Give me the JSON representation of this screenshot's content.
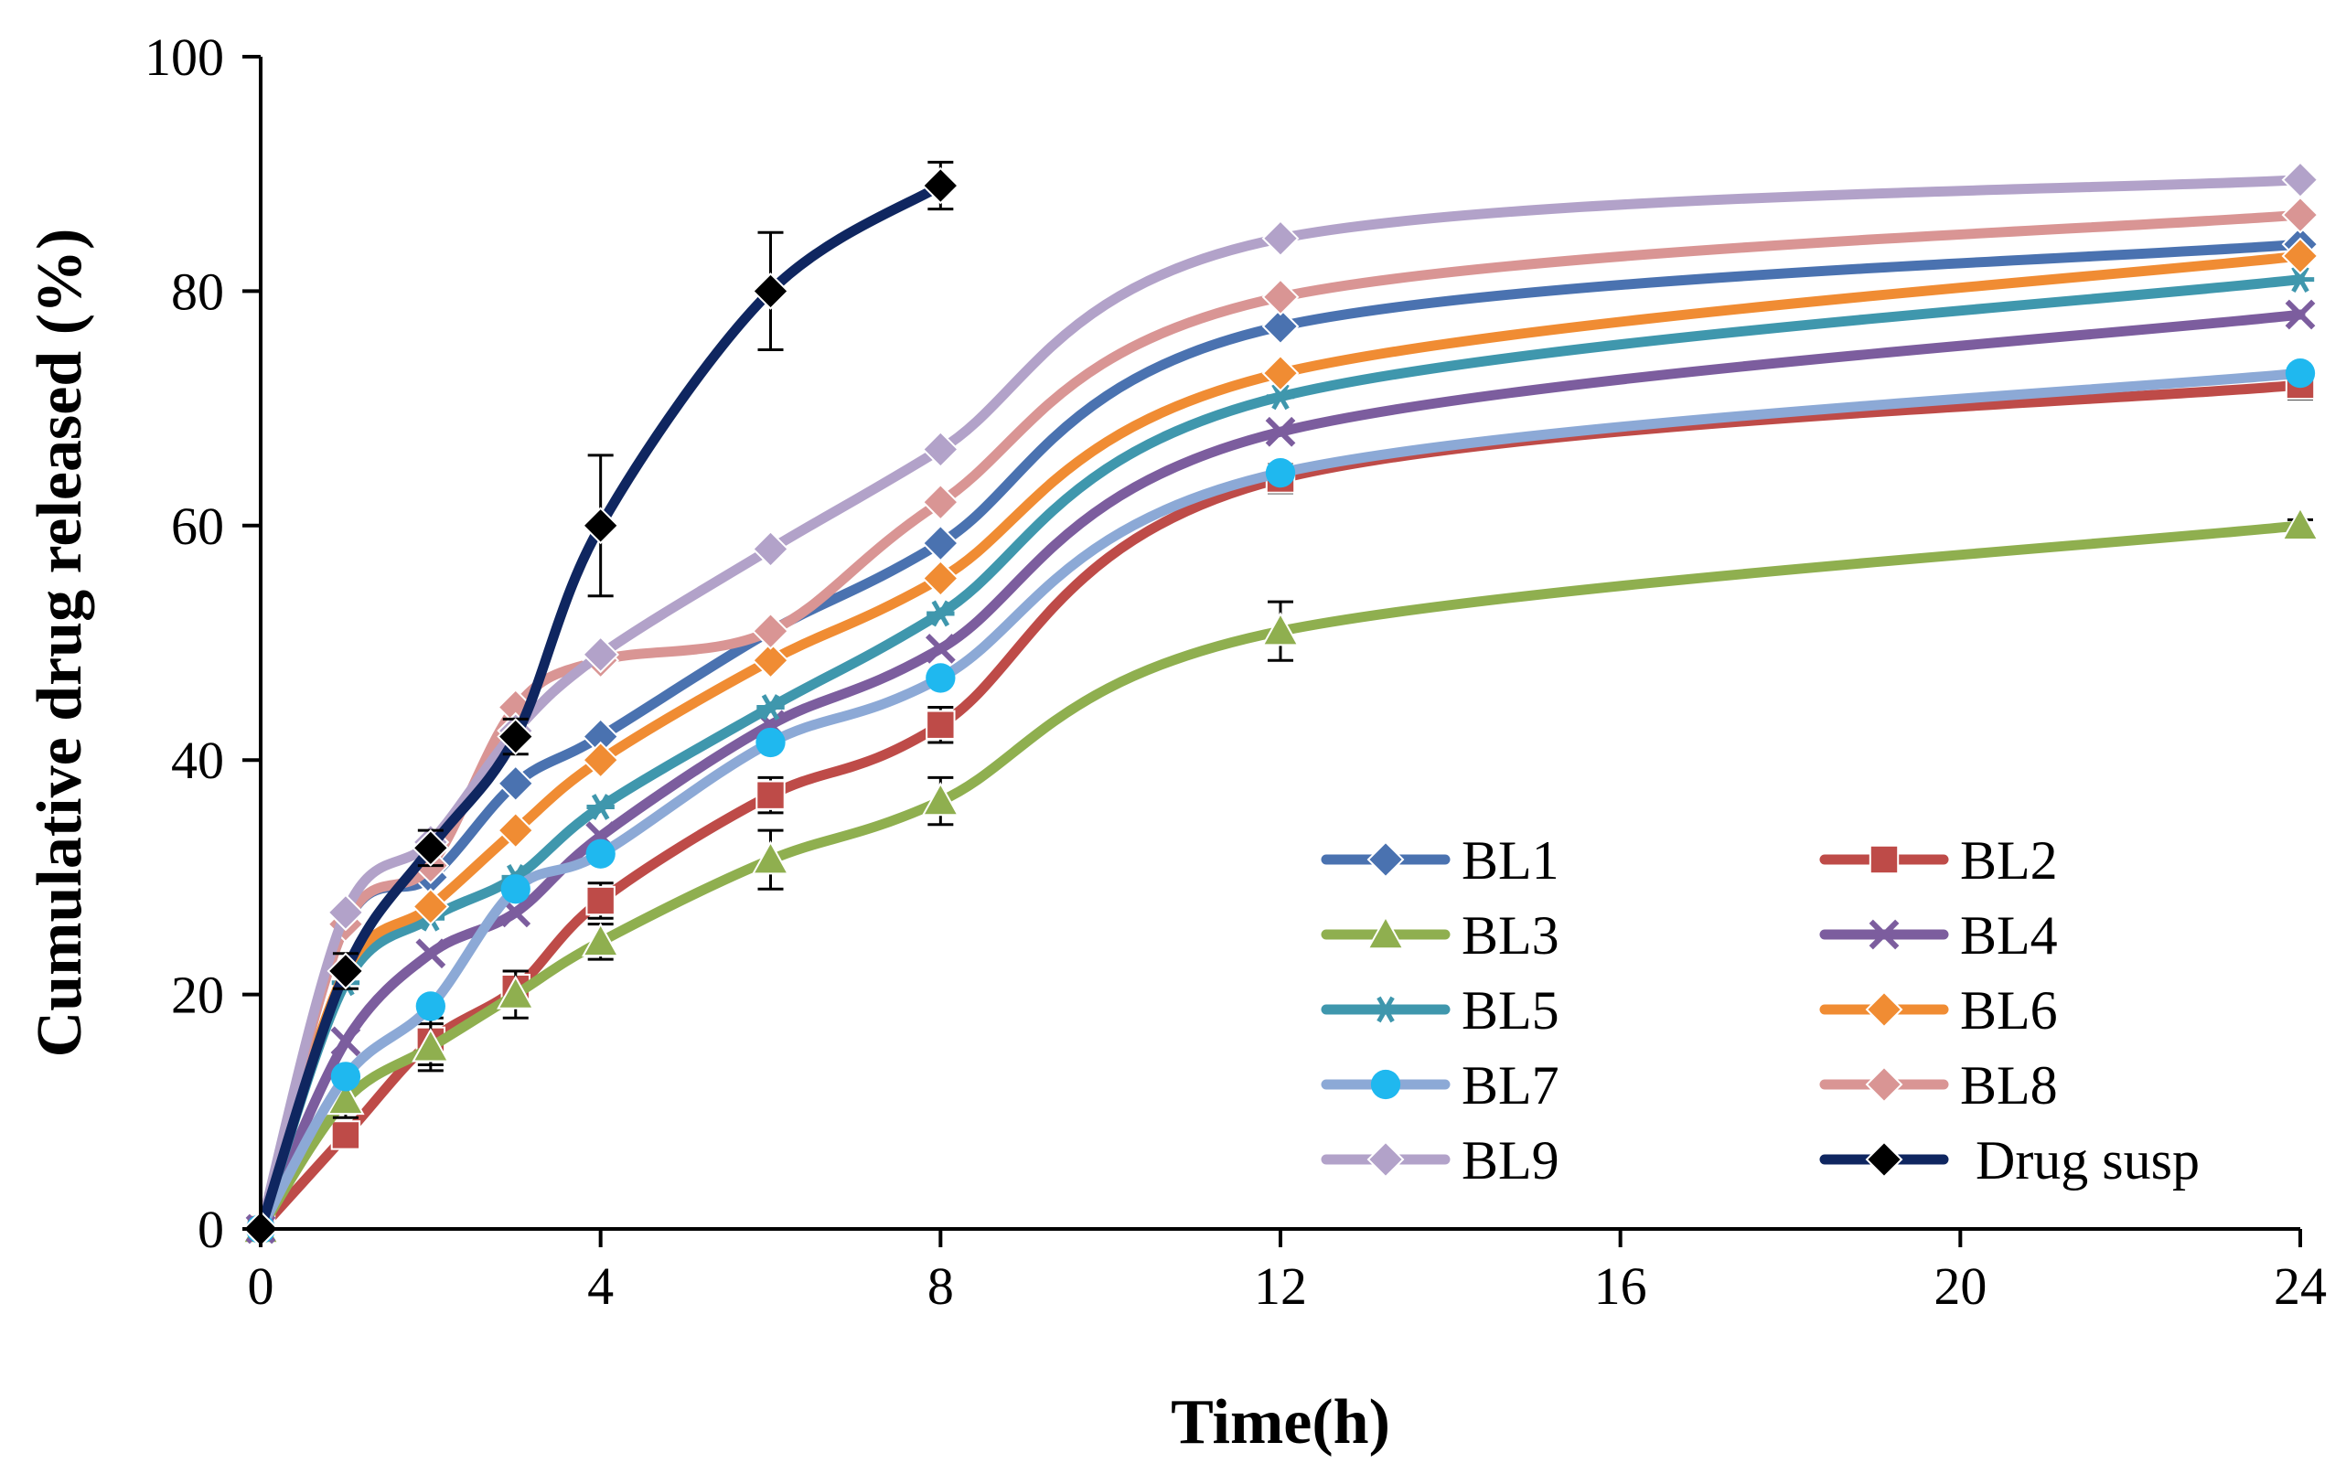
{
  "chart_data": {
    "type": "line",
    "title": "",
    "xlabel": "Time(h)",
    "ylabel": "Cumulative drug released (%)",
    "xlim": [
      0,
      24
    ],
    "ylim": [
      0,
      100
    ],
    "xticks": [
      0,
      4,
      8,
      12,
      16,
      20,
      24
    ],
    "yticks": [
      0,
      20,
      40,
      60,
      80,
      100
    ],
    "grid": false,
    "legend_position": "bottom-right",
    "series": [
      {
        "name": "BL1",
        "color": "#4a72b0",
        "marker": "diamond",
        "x": [
          0,
          1,
          2,
          3,
          4,
          6,
          8,
          12,
          24
        ],
        "y": [
          0,
          26,
          30,
          38,
          42,
          51,
          58.5,
          77,
          84
        ]
      },
      {
        "name": "BL2",
        "color": "#be4b48",
        "marker": "square",
        "x": [
          0,
          1,
          2,
          3,
          4,
          6,
          8,
          12,
          24
        ],
        "y": [
          0,
          8,
          16,
          20.5,
          28,
          37,
          43,
          64,
          72
        ],
        "err": [
          0,
          1,
          2,
          1.5,
          1.5,
          1.5,
          1.5,
          1.2,
          1.2
        ]
      },
      {
        "name": "BL3",
        "color": "#8faf4f",
        "marker": "triangle",
        "x": [
          0,
          1,
          2,
          3,
          4,
          6,
          8,
          12,
          24
        ],
        "y": [
          0,
          11,
          15.5,
          20,
          24.5,
          31.5,
          36.5,
          51,
          60
        ],
        "err": [
          0,
          1.5,
          2,
          2,
          1.5,
          2.5,
          2,
          2.5,
          0.5
        ]
      },
      {
        "name": "BL4",
        "color": "#7c5d9e",
        "marker": "x",
        "x": [
          0,
          1,
          2,
          3,
          4,
          6,
          8,
          12,
          24
        ],
        "y": [
          0,
          16,
          23.5,
          27,
          33.5,
          43,
          49.5,
          68,
          78
        ]
      },
      {
        "name": "BL5",
        "color": "#3f97ad",
        "marker": "star",
        "x": [
          0,
          1,
          2,
          3,
          4,
          6,
          8,
          12,
          24
        ],
        "y": [
          0,
          21,
          26.5,
          30,
          36,
          44.5,
          52.5,
          71,
          81
        ]
      },
      {
        "name": "BL6",
        "color": "#f08c33",
        "marker": "diamond",
        "x": [
          0,
          1,
          2,
          3,
          4,
          6,
          8,
          12,
          24
        ],
        "y": [
          0,
          22,
          27.5,
          34,
          40,
          48.5,
          55.5,
          73,
          83
        ]
      },
      {
        "name": "BL7",
        "color": "#8ca9d6",
        "marker": "circle",
        "markerColor": "#1fb8ef",
        "x": [
          0,
          1,
          2,
          3,
          4,
          6,
          8,
          12,
          24
        ],
        "y": [
          0,
          13,
          19,
          29,
          32,
          41.5,
          47,
          64.5,
          73
        ]
      },
      {
        "name": "BL8",
        "color": "#d99594",
        "marker": "diamond",
        "x": [
          0,
          1,
          2,
          3,
          4,
          6,
          8,
          12,
          24
        ],
        "y": [
          0,
          26,
          31,
          44.5,
          48.5,
          51,
          62,
          79.5,
          86.5
        ]
      },
      {
        "name": "BL9",
        "color": "#b2a2c9",
        "marker": "diamond",
        "x": [
          0,
          1,
          2,
          3,
          4,
          6,
          8,
          12,
          24
        ],
        "y": [
          0,
          27,
          33,
          42.5,
          49,
          58,
          66.5,
          84.5,
          89.5
        ]
      },
      {
        "name": "Drug susp",
        "color": "#0f2660",
        "marker": "diamond",
        "markerColor": "#000000",
        "x": [
          0,
          1,
          2,
          3,
          4,
          6,
          8
        ],
        "y": [
          0,
          22,
          32.5,
          42,
          60,
          80,
          89
        ],
        "err": [
          0,
          1.5,
          1.5,
          1.5,
          6,
          5,
          2
        ]
      }
    ]
  }
}
